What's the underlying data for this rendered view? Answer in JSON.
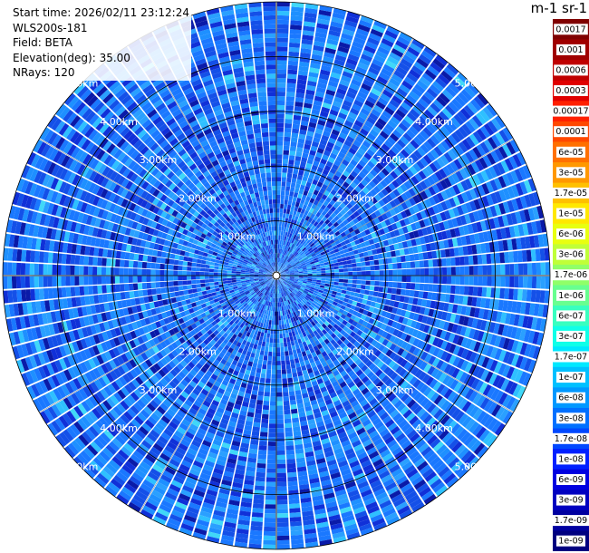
{
  "info": {
    "start_time": "Start time: 2026/02/11 23:12:24",
    "instrument": "WLS200s-181",
    "field": "Field: BETA",
    "elevation": "Elevation(deg): 35.00",
    "nrays": "NRays: 120"
  },
  "colorbar": {
    "title": "m-1 sr-1",
    "ticks": [
      "0.0017",
      "0.001",
      "0.0006",
      "0.0003",
      "0.00017",
      "0.0001",
      "6e-05",
      "3e-05",
      "1.7e-05",
      "1e-05",
      "6e-06",
      "3e-06",
      "1.7e-06",
      "1e-06",
      "6e-07",
      "3e-07",
      "1.7e-07",
      "1e-07",
      "6e-08",
      "3e-08",
      "1.7e-08",
      "1e-08",
      "6e-09",
      "3e-09",
      "1.7e-09",
      "1e-09"
    ],
    "colors": [
      "#800000",
      "#a00000",
      "#c00000",
      "#e00000",
      "#ff2000",
      "#ff4800",
      "#ff7000",
      "#ff9800",
      "#ffc000",
      "#ffe800",
      "#e8ff10",
      "#c0ff38",
      "#90ff68",
      "#68ff90",
      "#38ffc0",
      "#10ffe8",
      "#00e8ff",
      "#00c0ff",
      "#0098ff",
      "#0070ff",
      "#0048ff",
      "#0020ff",
      "#0000e0",
      "#0000c0",
      "#0000a0",
      "#000080"
    ]
  },
  "chart_data": {
    "type": "heatmap",
    "projection": "PPI polar (azimuth vs range)",
    "field": "BETA",
    "elevation_deg": 35.0,
    "n_rays": 120,
    "max_range_km": 5.0,
    "range_rings_km": [
      1.0,
      2.0,
      3.0,
      4.0,
      5.0
    ],
    "ring_labels": [
      "1.00km",
      "2.00km",
      "3.00km",
      "4.00km",
      "5.00km"
    ],
    "dominant_values": "mostly 6e-08 to 1e-08 (blue), scattered 1e-07 (light blue/cyan)",
    "scale": "log",
    "range": [
      1e-09,
      0.0017
    ]
  }
}
